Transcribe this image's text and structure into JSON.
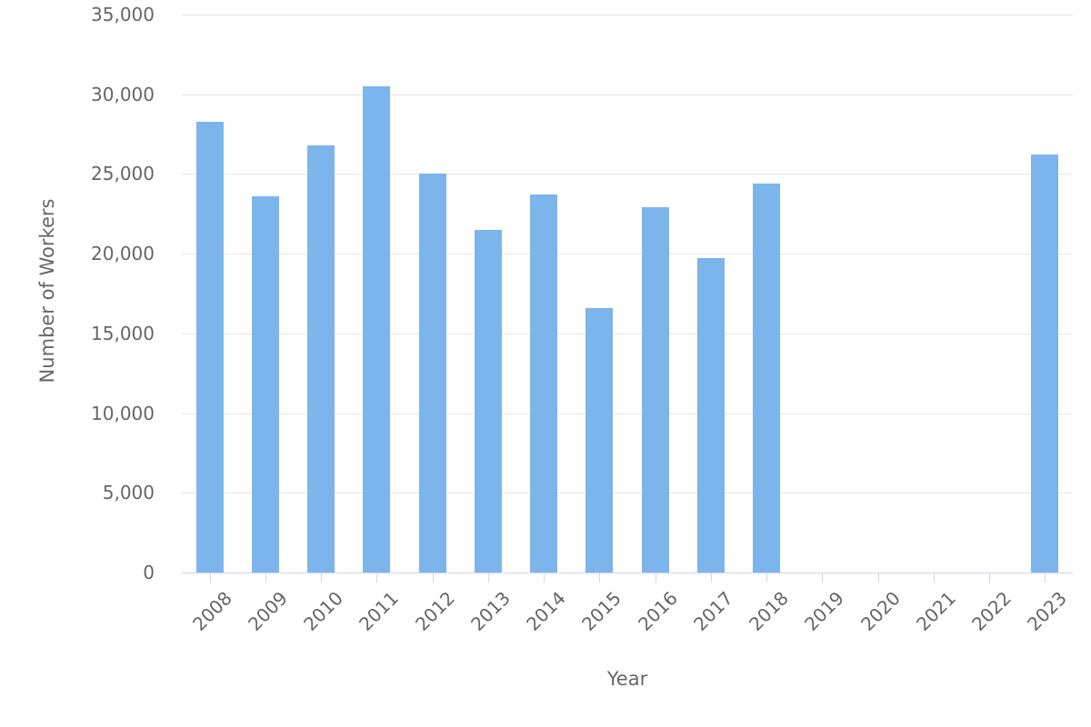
{
  "chart_data": {
    "type": "bar",
    "xlabel": "Year",
    "ylabel": "Number of Workers",
    "categories": [
      "2008",
      "2009",
      "2010",
      "2011",
      "2012",
      "2013",
      "2014",
      "2015",
      "2016",
      "2017",
      "2018",
      "2019",
      "2020",
      "2021",
      "2022",
      "2023"
    ],
    "values": [
      28300,
      23600,
      26800,
      30500,
      25000,
      21500,
      23700,
      16600,
      22900,
      19700,
      24400,
      0,
      0,
      0,
      0,
      26200
    ],
    "ylim": [
      0,
      35000
    ],
    "ytick_step": 5000,
    "ytick_labels": [
      "0",
      "5,000",
      "10,000",
      "15,000",
      "20,000",
      "25,000",
      "30,000",
      "35,000"
    ],
    "x_tick_label_rotation": -45,
    "grid": "horizontal",
    "legend": "none"
  },
  "colors": {
    "bar": "#7cb5ec",
    "gridline": "#e6e6e6",
    "axis_line": "#ccd6eb",
    "tick": "#ccd6eb",
    "label_text": "#666666",
    "axis_title_text": "#666666",
    "background": "#ffffff"
  }
}
